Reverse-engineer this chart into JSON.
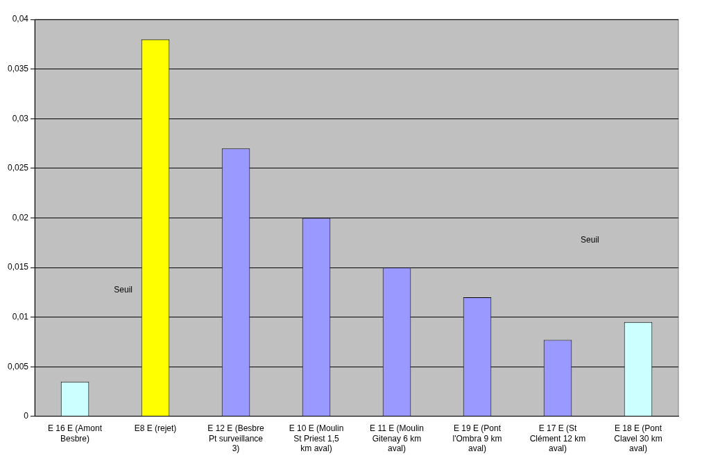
{
  "chart_data": {
    "type": "bar",
    "categories": [
      "E 16 E (Amont Besbre)",
      "E8 E (rejet)",
      "E 12 E (Besbre Pt surveillance 3)",
      "E 10 E (Moulin St Priest 1,5 km aval)",
      "E 11 E (Moulin Gitenay 6 km aval)",
      "E 19 E (Pont l'Ombra 9 km aval)",
      "E 17 E (St Clément 12 km aval)",
      "E 18 E (Pont Clavel 30 km aval)"
    ],
    "values": [
      0.0035,
      0.038,
      0.027,
      0.02,
      0.015,
      0.012,
      0.0077,
      0.0095
    ],
    "colors": [
      "#ccffff",
      "#ffff00",
      "#9999ff",
      "#9999ff",
      "#9999ff",
      "#9999ff",
      "#9999ff",
      "#ccffff"
    ],
    "ylim": [
      0,
      0.04
    ],
    "yticks": [
      0,
      {
        "value": 0.005,
        "label": "0,005"
      },
      {
        "value": 0.01,
        "label": "0,01"
      },
      {
        "value": 0.015,
        "label": "0,015"
      },
      {
        "value": 0.02,
        "label": "0,02"
      },
      {
        "value": 0.025,
        "label": "0,025"
      },
      {
        "value": 0.03,
        "label": "0,03"
      },
      {
        "value": 0.035,
        "label": "0,035"
      },
      {
        "value": 0.04,
        "label": "0,04"
      }
    ],
    "grid": "y",
    "legend": false,
    "annotations": [
      "Seuil",
      "Seuil"
    ]
  }
}
